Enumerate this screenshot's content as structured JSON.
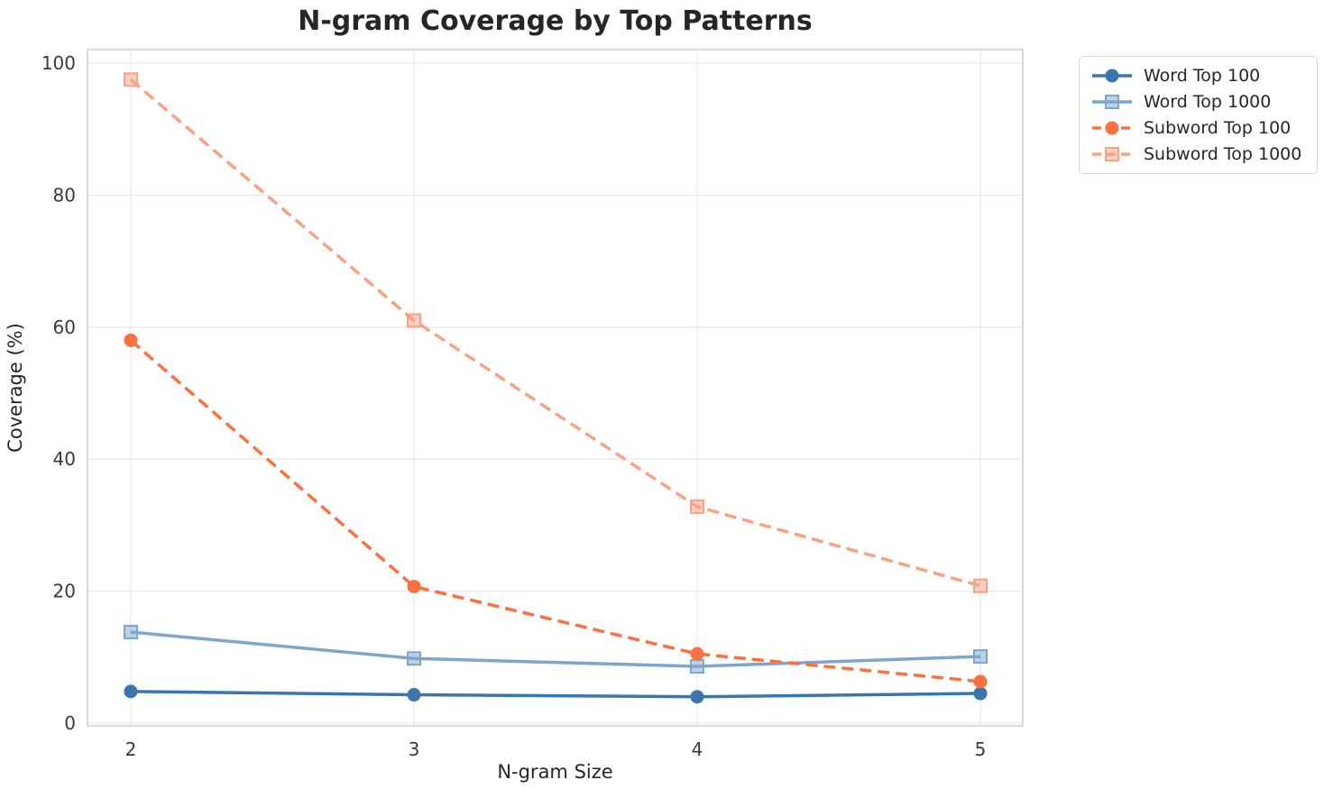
{
  "figure": {
    "background": "#ffffff",
    "text_color": "#262626",
    "tick_color": "#3a3a3a",
    "grid_color": "#e9e9e9",
    "spine_color": "#cccccc"
  },
  "chart_data": {
    "type": "line",
    "title": "N-gram Coverage by Top Patterns",
    "xlabel": "N-gram Size",
    "ylabel": "Coverage (%)",
    "x": [
      2,
      3,
      4,
      5
    ],
    "xticks": [
      2,
      3,
      4,
      5
    ],
    "yticks": [
      0,
      20,
      40,
      60,
      80,
      100
    ],
    "xlim": [
      1.85,
      5.15
    ],
    "ylim": [
      0,
      102
    ],
    "grid": true,
    "legend_position": "outside-top-right",
    "series": [
      {
        "name": "Word Top 100",
        "values": [
          4.8,
          4.3,
          4.0,
          4.5
        ],
        "color": "#3a76ae",
        "linestyle": "solid",
        "marker": "circle"
      },
      {
        "name": "Word Top 1000",
        "values": [
          13.8,
          9.8,
          8.6,
          10.1
        ],
        "color": "#7ca6ce",
        "linestyle": "solid",
        "marker": "square"
      },
      {
        "name": "Subword Top 100",
        "values": [
          58.0,
          20.7,
          10.5,
          6.3
        ],
        "color": "#fb7041",
        "linestyle": "dashed",
        "marker": "circle"
      },
      {
        "name": "Subword Top 1000",
        "values": [
          97.5,
          61.0,
          32.8,
          20.8
        ],
        "color": "#fba183",
        "linestyle": "dashed",
        "marker": "square"
      }
    ]
  }
}
